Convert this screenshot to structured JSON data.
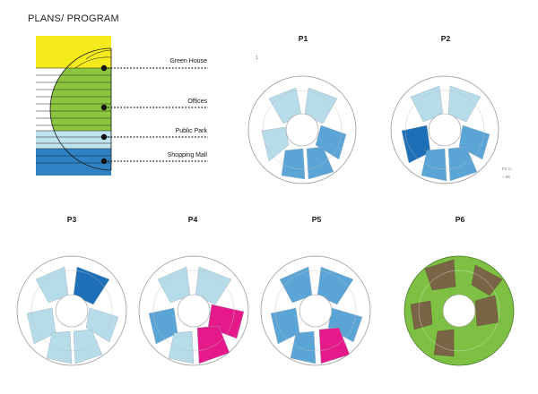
{
  "page": {
    "title": "PLANS/ PROGRAM",
    "tick_mark": "1"
  },
  "program_diagram": {
    "levels": [
      {
        "label": "Green House"
      },
      {
        "label": "Offices"
      },
      {
        "label": "Public Park"
      },
      {
        "label": "Shopping Mall"
      }
    ],
    "colors": {
      "green_house": "#f4ea1c",
      "offices": "#8cc63f",
      "park": "#bfe3ef",
      "mall": "#2f83c4"
    }
  },
  "plans": [
    {
      "id": "p1",
      "label": "P1"
    },
    {
      "id": "p2",
      "label": "P2",
      "notes": [
        "P2 C-",
        "+ 95"
      ]
    },
    {
      "id": "p3",
      "label": "P3"
    },
    {
      "id": "p4",
      "label": "P4"
    },
    {
      "id": "p5",
      "label": "P5"
    },
    {
      "id": "p6",
      "label": "P6"
    }
  ],
  "colors": {
    "light_blue": "#b7dce9",
    "mid_blue": "#5aa5d6",
    "dark_blue": "#1d6fb8",
    "magenta": "#e6198a",
    "green": "#7dc043",
    "brown": "#7a6446",
    "ring": "#aaaaaa"
  }
}
